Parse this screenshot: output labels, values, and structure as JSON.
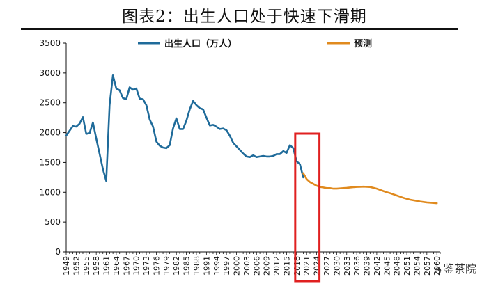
{
  "title": "图表2：出生人口处于快速下滑期",
  "watermark": "鉴茶院",
  "colors": {
    "actual": "#1f6b9a",
    "forecast": "#e08a1e",
    "highlight": "#e02020",
    "axis": "#111111"
  },
  "chart_data": {
    "type": "line",
    "title": "图表2：出生人口处于快速下滑期",
    "xlabel": "",
    "ylabel": "",
    "xlim": [
      1949,
      2061
    ],
    "ylim": [
      0,
      3500
    ],
    "y_ticks": [
      0,
      500,
      1000,
      1500,
      2000,
      2500,
      3000,
      3500
    ],
    "x_tick_labels": [
      "1949",
      "1952",
      "1955",
      "1958",
      "1961",
      "1964",
      "1967",
      "1970",
      "1973",
      "1976",
      "1979",
      "1982",
      "1985",
      "1988",
      "1991",
      "1994",
      "1997",
      "2000",
      "2003",
      "2006",
      "2009",
      "2012",
      "2015",
      "2018",
      "2021",
      "2024",
      "2027",
      "2030",
      "2033",
      "2036",
      "2039",
      "2042",
      "2045",
      "2048",
      "2051",
      "2054",
      "2057",
      "2060"
    ],
    "legend": {
      "placement": "top"
    },
    "grid": false,
    "highlight_range": [
      2018,
      2024
    ],
    "series": [
      {
        "name": "出生人口（万人）",
        "x": [
          1949,
          1950,
          1951,
          1952,
          1953,
          1954,
          1955,
          1956,
          1957,
          1958,
          1959,
          1960,
          1961,
          1962,
          1963,
          1964,
          1965,
          1966,
          1967,
          1968,
          1969,
          1970,
          1971,
          1972,
          1973,
          1974,
          1975,
          1976,
          1977,
          1978,
          1979,
          1980,
          1981,
          1982,
          1983,
          1984,
          1985,
          1986,
          1987,
          1988,
          1989,
          1990,
          1991,
          1992,
          1993,
          1994,
          1995,
          1996,
          1997,
          1998,
          1999,
          2000,
          2001,
          2002,
          2003,
          2004,
          2005,
          2006,
          2007,
          2008,
          2009,
          2010,
          2011,
          2012,
          2013,
          2014,
          2015,
          2016,
          2017,
          2018,
          2019,
          2020
        ],
        "values": [
          1950,
          2030,
          2110,
          2100,
          2150,
          2260,
          1980,
          1990,
          2170,
          1900,
          1650,
          1390,
          1190,
          2460,
          2960,
          2740,
          2710,
          2580,
          2560,
          2760,
          2720,
          2740,
          2570,
          2560,
          2460,
          2220,
          2100,
          1850,
          1780,
          1750,
          1740,
          1790,
          2070,
          2240,
          2060,
          2060,
          2200,
          2390,
          2530,
          2460,
          2410,
          2390,
          2250,
          2120,
          2130,
          2100,
          2060,
          2070,
          2040,
          1950,
          1830,
          1770,
          1710,
          1650,
          1600,
          1590,
          1620,
          1590,
          1600,
          1610,
          1600,
          1600,
          1610,
          1640,
          1640,
          1690,
          1660,
          1790,
          1740,
          1520,
          1470,
          1250
        ]
      },
      {
        "name": "预测",
        "x": [
          2020,
          2021,
          2022,
          2023,
          2024,
          2025,
          2026,
          2027,
          2028,
          2029,
          2030,
          2031,
          2032,
          2033,
          2034,
          2035,
          2036,
          2037,
          2038,
          2039,
          2040,
          2041,
          2042,
          2043,
          2044,
          2045,
          2046,
          2047,
          2048,
          2049,
          2050,
          2051,
          2052,
          2053,
          2054,
          2055,
          2056,
          2057,
          2058,
          2059,
          2060
        ],
        "values": [
          1320,
          1220,
          1170,
          1140,
          1110,
          1090,
          1080,
          1070,
          1070,
          1060,
          1060,
          1065,
          1070,
          1075,
          1080,
          1085,
          1090,
          1092,
          1094,
          1092,
          1088,
          1075,
          1060,
          1040,
          1020,
          1000,
          985,
          965,
          945,
          925,
          905,
          890,
          875,
          865,
          855,
          845,
          837,
          830,
          825,
          820,
          815
        ]
      }
    ]
  }
}
